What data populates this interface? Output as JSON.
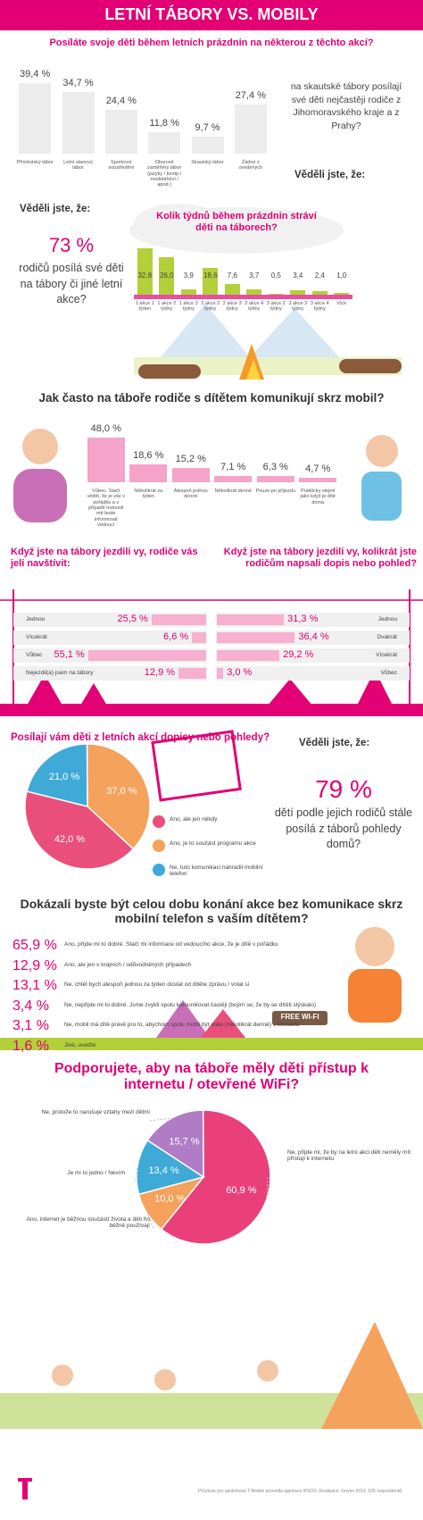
{
  "header": {
    "title": "LETNÍ TÁBORY VS. MOBILY"
  },
  "facts": [
    {
      "heading": "Věděli jste, že:",
      "text": "na skautské tábory posílají své děti nejčastěji rodiče z Jihomoravského kraje a z Prahy?"
    },
    {
      "heading": "Věděli jste, že:",
      "big": "73 %",
      "text": "rodičů posílá své děti na tábory či jiné letní akce?"
    },
    {
      "heading": "Věděli jste, že:",
      "big": "79 %",
      "text": "dětí podle jejich rodičů stále posílá z táborů pohledy domů?"
    }
  ],
  "sign": "FREE WI-FI",
  "footer": "Průzkum pro společnost T-Mobile provedla agentura IPSOS. Realizace: červen 2019, 525 respondentů",
  "chart_data": [
    {
      "type": "bar",
      "title": "Posíláte svoje děti během letních prázdnin na některou z těchto akcí?",
      "categories": [
        "Příměstský tábor",
        "Letní stanový tábor",
        "Sportovní soustředění",
        "Oborově zaměřený tábor (jazyky / kemp / modelářství / apod.)",
        "Skautský tábor",
        "Žádné z uvedených"
      ],
      "values": [
        39.4,
        34.7,
        24.4,
        11.8,
        9.7,
        27.4
      ],
      "value_labels": [
        "39,4 %",
        "34,7 %",
        "24,4 %",
        "11,8 %",
        "9,7 %",
        "27,4 %"
      ],
      "color": "#ececec"
    },
    {
      "type": "bar",
      "title": "Kolik týdnů během prázdnin stráví děti na táborech?",
      "categories": [
        "1 akce 1 týden",
        "1 akce 2 týdny",
        "1 akce 3 týdny",
        "2 akce 2 týdny",
        "2 akce 3 týdny",
        "2 akce 4 týdny",
        "3 akce 2 týdny",
        "3 akce 3 týdny",
        "3 akce 4 týdny",
        "Více"
      ],
      "values": [
        32.8,
        26.0,
        3.9,
        18.6,
        7.6,
        3.7,
        0.5,
        3.4,
        2.4,
        1.0
      ],
      "value_labels": [
        "32,8",
        "26,0",
        "3,9",
        "18,6",
        "7,6",
        "3,7",
        "0,5",
        "3,4",
        "2,4",
        "1,0"
      ],
      "color": "#b3cf3a"
    },
    {
      "type": "bar",
      "title": "Jak často na táboře rodiče s dítětem komunikují skrz mobil?",
      "categories": [
        "Vůbec. Stačí vědět, že je vše v pořádku a v případě nutnosti mě bude informovat vedoucí",
        "Několikrát za týden",
        "Alespoň jednou denně",
        "Několikrát denně",
        "Pouze po příjezdu",
        "Prakticky stejně jako když je dítě doma"
      ],
      "values": [
        48.0,
        18.6,
        15.2,
        7.1,
        6.3,
        4.7
      ],
      "value_labels": [
        "48,0 %",
        "18,6 %",
        "15,2 %",
        "7,1 %",
        "6,3 %",
        "4,7 %"
      ],
      "color": "#f5a3c9"
    },
    {
      "type": "hbar",
      "direction": "left",
      "title": "Když jste na tábory jezdili vy, rodiče vás jeli navštívit:",
      "categories": [
        "Jednou",
        "Vícekrát",
        "Vůbec",
        "Nejezdil(a) jsem na tábory"
      ],
      "values": [
        25.5,
        6.6,
        55.1,
        12.9
      ],
      "value_labels": [
        "25,5 %",
        "6,6 %",
        "55,1 %",
        "12,9 %"
      ],
      "color": "#f7b0d0"
    },
    {
      "type": "hbar",
      "direction": "right",
      "title": "Když jste na tábory jezdili vy, kolikrát jste rodičům napsali dopis nebo pohled?",
      "categories": [
        "Jednou",
        "Dvakrát",
        "Vícekrát",
        "Vůbec"
      ],
      "values": [
        31.3,
        36.4,
        29.2,
        3.0
      ],
      "value_labels": [
        "31,3 %",
        "36,4 %",
        "29,2 %",
        "3,0 %"
      ],
      "color": "#f7b0d0"
    },
    {
      "type": "pie",
      "title": "Posílají vám děti z letních akcí dopisy nebo pohledy?",
      "categories": [
        "Ano, ale jen někdy",
        "Ano, je to součást programu akce",
        "Ne, tuto komunikaci nahradil mobilní telefon"
      ],
      "values": [
        42.0,
        37.0,
        21.0
      ],
      "value_labels": [
        "42,0 %",
        "37,0 %",
        "21,0 %"
      ],
      "colors": [
        "#e94f7a",
        "#f5a25d",
        "#3fa9d8"
      ]
    },
    {
      "type": "list",
      "title": "Dokázali byste být celou dobu konání akce bez komunikace skrz mobilní telefon s vaším dítětem?",
      "categories": [
        "Ano, přijde mi to dobré. Stačí mi informace od vedoucího akce, že je dítě v pořádku",
        "Ano, ale jen v krajních / odůvodněných případech",
        "Ne, chtěl bych alespoň jednou za týden dostat od dítěte zprávu / volat si",
        "Ne, nepřijde mi to dobré. Jsme zvyklí spolu komunikovat častěji (bojím se, že by se dítěti stýskalo)",
        "Ne, mobil má dítě právě pro to, abychom spolu mohli být stále (několikrát denně) v kontaktu",
        "Jiné, uveďte"
      ],
      "values": [
        65.9,
        12.9,
        13.1,
        3.4,
        3.1,
        1.6
      ],
      "value_labels": [
        "65,9 %",
        "12,9 %",
        "13,1 %",
        "3,4 %",
        "3,1 %",
        "1,6 %"
      ]
    },
    {
      "type": "pie",
      "title": "Podporujete, aby na táboře měly děti přístup k internetu / otevřené WiFi?",
      "categories": [
        "Ne, přijde mi, že by na letní akci děti neměly mít přístup k internetu",
        "Ne, protože to narušuje vztahy mezi dětmi",
        "Je mi to jedno / Nevím",
        "Ano, internet je běžnou součástí života a děti ho běžně používají"
      ],
      "values": [
        60.9,
        15.7,
        13.4,
        10.0
      ],
      "value_labels": [
        "60,9 %",
        "15,7 %",
        "13,4 %",
        "10,0 %"
      ],
      "colors": [
        "#e9407a",
        "#b07cc6",
        "#3fa9d8",
        "#f5a25d"
      ]
    }
  ]
}
